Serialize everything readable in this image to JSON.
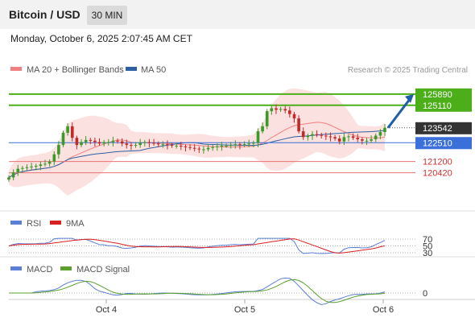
{
  "header": {
    "title": "Bitcoin / USD",
    "timeframe": "30 MIN"
  },
  "date_text": "Monday, October 6, 2025 2:07:45 AM CET",
  "chart_data": [
    {
      "type": "candlestick",
      "legend": [
        {
          "label": "MA 20 + Bollinger Bands",
          "color": "#f08080"
        },
        {
          "label": "MA 50",
          "color": "#2e5fa3"
        }
      ],
      "copyright": "Research © 2025 Trading Central",
      "ylim": [
        119000,
        127000
      ],
      "levels": [
        {
          "value": 125890,
          "label": "125890",
          "color": "#4caf1a",
          "style": "thick",
          "tag": "green"
        },
        {
          "value": 125110,
          "label": "125110",
          "color": "#4caf1a",
          "style": "thick",
          "tag": "green"
        },
        {
          "value": 123542,
          "label": "123542",
          "color": "#555555",
          "style": "dotted",
          "tag": "dark"
        },
        {
          "value": 122510,
          "label": "122510",
          "color": "#3b6fd9",
          "style": "thin",
          "tag": "blue"
        },
        {
          "value": 121200,
          "label": "121200",
          "color": "#e57373",
          "style": "thin",
          "tag": "text"
        },
        {
          "value": 120420,
          "label": "120420",
          "color": "#e57373",
          "style": "thin",
          "tag": "text"
        }
      ],
      "forecast_arrow": {
        "from": 123550,
        "to": 125890
      },
      "x_ticks": [
        "Oct 4",
        "Oct 5",
        "Oct 6"
      ],
      "close": [
        120100,
        120450,
        120700,
        120750,
        120800,
        120850,
        120900,
        121000,
        121050,
        121200,
        121700,
        122350,
        123200,
        123650,
        122850,
        122350,
        122550,
        122700,
        122650,
        122550,
        122450,
        122550,
        122550,
        122650,
        122600,
        122450,
        122350,
        122300,
        122350,
        122500,
        122550,
        122500,
        122450,
        122400,
        122400,
        122350,
        122300,
        122300,
        122250,
        122200,
        122150,
        122100,
        122050,
        122050,
        122150,
        122200,
        122250,
        122300,
        122300,
        122350,
        122400,
        122350,
        122400,
        122450,
        122500,
        123300,
        123650,
        124700,
        124900,
        124800,
        124850,
        124750,
        124500,
        124200,
        123300,
        122900,
        123000,
        123100,
        123050,
        123000,
        122950,
        122900,
        122800,
        122600,
        122900,
        122950,
        122850,
        122750,
        122650,
        122650,
        122750,
        123000,
        123250,
        123542
      ],
      "rsi": {
        "levels": [
          70,
          50,
          30
        ]
      },
      "macd": {
        "zero_label": "0",
        "legend": [
          {
            "label": "MACD",
            "color": "#5b7fd6"
          },
          {
            "label": "MACD Signal",
            "color": "#5aa02c"
          }
        ]
      },
      "rsi_legend": [
        {
          "label": "RSI",
          "color": "#5b7fd6"
        },
        {
          "label": "9MA",
          "color": "#d92020"
        }
      ]
    }
  ]
}
